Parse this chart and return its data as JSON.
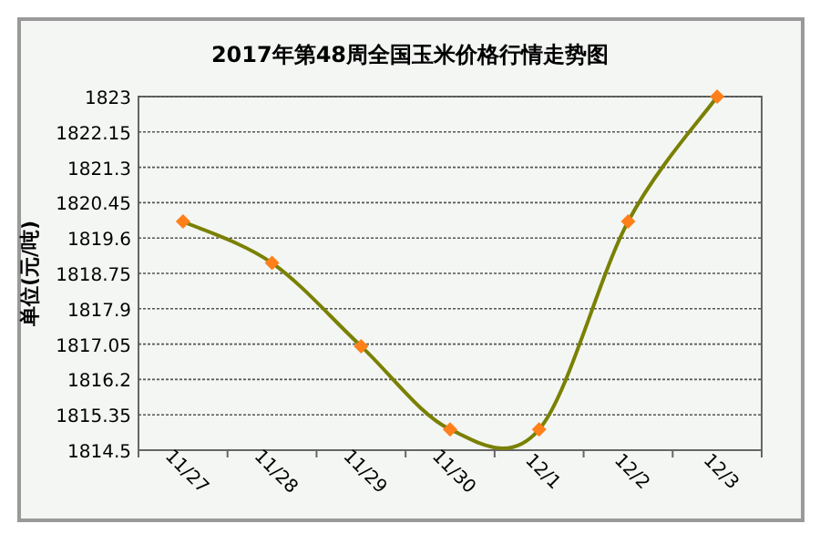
{
  "chart_data": {
    "type": "line",
    "title": "2017年第48周全国玉米价格行情走势图",
    "ylabel": "单位(元/吨)",
    "categories": [
      "11/27",
      "11/28",
      "11/29",
      "11/30",
      "12/1",
      "12/2",
      "12/3"
    ],
    "series": [
      {
        "color": "#7a8000",
        "values": [
          1820,
          1819,
          1817,
          1815,
          1815,
          1820,
          1823
        ]
      }
    ],
    "marker": "diamond",
    "ylim": [
      1814.5,
      1823
    ],
    "yticks": [
      1814.5,
      1815.35,
      1816.2,
      1817.05,
      1817.9,
      1818.75,
      1819.6,
      1820.45,
      1821.3,
      1822.15,
      1823
    ],
    "grid": "y"
  }
}
